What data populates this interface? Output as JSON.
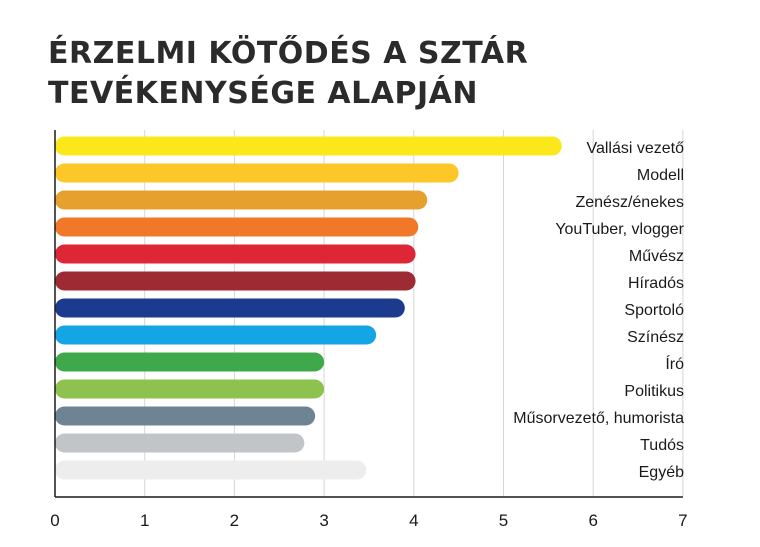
{
  "chart_data": {
    "type": "bar",
    "orientation": "horizontal",
    "title": "ÉRZELMI KÖTŐDÉS A SZTÁR TEVÉKENYSÉGE ALAPJÁN",
    "categories": [
      "Vallási vezető",
      "Modell",
      "Zenész/énekes",
      "YouTuber, vlogger",
      "Művész",
      "Híradós",
      "Sportoló",
      "Színész",
      "Író",
      "Politikus",
      "Műsorvezető, humorista",
      "Tudós",
      "Egyéb"
    ],
    "values": [
      5.65,
      4.5,
      4.15,
      4.05,
      4.02,
      4.02,
      3.9,
      3.58,
      3.0,
      3.0,
      2.9,
      2.78,
      3.47
    ],
    "colors": [
      "#fbe81a",
      "#fdc72a",
      "#e6a02e",
      "#f07828",
      "#dd2636",
      "#9e2b33",
      "#1c3b8e",
      "#14a6e4",
      "#3ea84a",
      "#8ec24e",
      "#6e8493",
      "#c2c5c8",
      "#ededed"
    ],
    "xticks": [
      "0",
      "1",
      "2",
      "3",
      "4",
      "5",
      "6",
      "7"
    ],
    "xlim": [
      0,
      7
    ],
    "xlabel": "",
    "ylabel": "",
    "grid": true,
    "grid_color": "#d6d6d6"
  }
}
